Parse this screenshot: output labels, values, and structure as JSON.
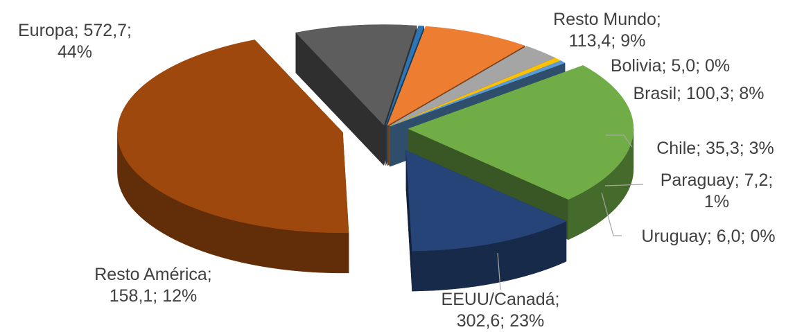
{
  "chart_data": {
    "type": "pie",
    "style": "3d-exploded",
    "title": "",
    "slices": [
      {
        "name": "Resto Mundo",
        "value": 113.4,
        "percent": 9,
        "color": "#5d5d5d",
        "label_lines": [
          "Resto Mundo;",
          "113,4; 9%"
        ]
      },
      {
        "name": "Bolivia",
        "value": 5.0,
        "percent": 0,
        "color": "#2e75b6",
        "label_lines": [
          "Bolivia; 5,0; 0%"
        ]
      },
      {
        "name": "Brasil",
        "value": 100.3,
        "percent": 8,
        "color": "#ed7d31",
        "label_lines": [
          "Brasil; 100,3; 8%"
        ]
      },
      {
        "name": "Chile",
        "value": 35.3,
        "percent": 3,
        "color": "#a5a5a5",
        "label_lines": [
          "Chile; 35,3; 3%"
        ]
      },
      {
        "name": "Paraguay",
        "value": 7.2,
        "percent": 1,
        "color": "#ffc000",
        "label_lines": [
          "Paraguay; 7,2;",
          "1%"
        ]
      },
      {
        "name": "Uruguay",
        "value": 6.0,
        "percent": 0,
        "color": "#5b9bd5",
        "label_lines": [
          "Uruguay; 6,0; 0%"
        ]
      },
      {
        "name": "EEUU/Canadá",
        "value": 302.6,
        "percent": 23,
        "color": "#70ad47",
        "label_lines": [
          "EEUU/Canadá;",
          "302,6; 23%"
        ]
      },
      {
        "name": "Resto América",
        "value": 158.1,
        "percent": 12,
        "color": "#264478",
        "label_lines": [
          "Resto América;",
          "158,1; 12%"
        ]
      },
      {
        "name": "Europa",
        "value": 572.7,
        "percent": 44,
        "color": "#9e480e",
        "label_lines": [
          "Europa; 572,7;",
          "44%"
        ]
      }
    ]
  }
}
